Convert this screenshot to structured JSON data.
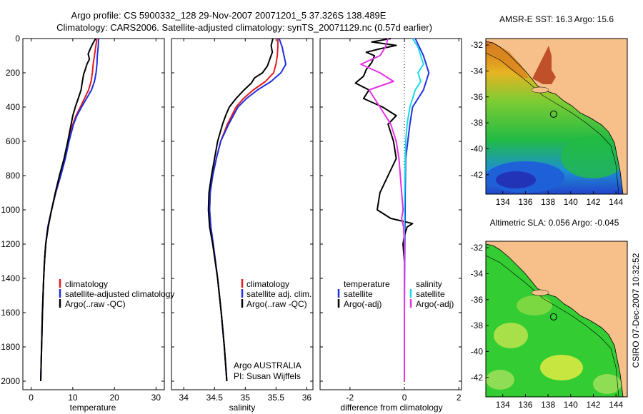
{
  "title_line1": "Argo profile: CS 5900332_128 29-Nov-2007 20071201_5 37.326S 138.489E",
  "title_line2": "Climatology: CARS2006. Satellite-adjusted climatology: synTS_20071129.nc (0.57d earlier)",
  "side_label": "CSIRO 07-Dec-2007 10:32:52",
  "colors": {
    "red": "#e41a1c",
    "blue": "#1f2fe0",
    "black": "#000000",
    "cyan": "#19d9e6",
    "magenta": "#e632e6"
  },
  "chart_data": [
    {
      "type": "line",
      "name": "temperature",
      "xlabel": "temperature",
      "ylabel": "",
      "xlim": [
        -2,
        32
      ],
      "ylim": [
        0,
        2050
      ],
      "xticks": [
        0,
        10,
        20,
        30
      ],
      "yticks": [
        0,
        200,
        400,
        600,
        800,
        1000,
        1200,
        1400,
        1600,
        1800,
        2000
      ],
      "series": [
        {
          "name": "climatology",
          "color": "red",
          "depth": [
            0,
            50,
            100,
            150,
            200,
            250,
            300,
            350,
            400,
            450,
            500,
            600,
            700,
            800,
            900,
            1000,
            1100,
            1200,
            1300,
            1400,
            1600,
            1800,
            2000
          ],
          "values": [
            15.8,
            15.5,
            15.2,
            14.9,
            14.7,
            14.4,
            13.8,
            12.8,
            11.8,
            10.8,
            10.0,
            9.0,
            8.2,
            7.1,
            5.9,
            4.9,
            4.0,
            3.5,
            3.2,
            3.0,
            2.7,
            2.5,
            2.3
          ]
        },
        {
          "name": "satellite-adjusted climatology",
          "color": "blue",
          "depth": [
            0,
            50,
            100,
            150,
            200,
            250,
            300,
            350,
            400,
            450,
            500,
            600,
            700,
            800,
            900,
            1000,
            1100,
            1200,
            1300,
            1400,
            1600,
            1800,
            2000
          ],
          "values": [
            16.2,
            16.1,
            15.9,
            15.8,
            15.6,
            15.2,
            14.5,
            13.3,
            12.1,
            11.0,
            10.2,
            9.1,
            8.2,
            7.1,
            5.9,
            4.9,
            4.0,
            3.5,
            3.2,
            3.0,
            2.7,
            2.5,
            2.3
          ]
        },
        {
          "name": "Argo(..raw -QC)",
          "color": "black",
          "depth": [
            0,
            30,
            60,
            90,
            120,
            150,
            180,
            210,
            250,
            300,
            350,
            400,
            450,
            500,
            600,
            700,
            800,
            900,
            1000,
            1100,
            1200,
            1300,
            1400,
            1600,
            1800,
            2000
          ],
          "values": [
            15.5,
            14.8,
            14.2,
            13.7,
            14.0,
            13.4,
            13.0,
            12.6,
            12.3,
            12.0,
            11.3,
            10.6,
            10.0,
            9.6,
            8.8,
            7.9,
            6.8,
            5.8,
            4.9,
            4.1,
            3.5,
            3.2,
            3.0,
            2.7,
            2.5,
            2.3
          ]
        }
      ],
      "legend": [
        "climatology",
        "satellite-adjusted climatology",
        "Argo(..raw -QC)"
      ]
    },
    {
      "type": "line",
      "name": "salinity",
      "xlabel": "salinity",
      "ylabel": "",
      "xlim": [
        33.8,
        36.1
      ],
      "ylim": [
        0,
        2050
      ],
      "xticks": [
        34,
        34.5,
        35,
        35.5,
        36
      ],
      "series": [
        {
          "name": "climatology",
          "color": "red",
          "depth": [
            0,
            50,
            100,
            150,
            200,
            250,
            300,
            350,
            400,
            500,
            600,
            700,
            800,
            900,
            1000,
            1100,
            1200,
            1400,
            1600,
            1800,
            2000
          ],
          "values": [
            35.53,
            35.53,
            35.52,
            35.5,
            35.46,
            35.33,
            35.13,
            34.97,
            34.85,
            34.71,
            34.6,
            34.53,
            34.47,
            34.43,
            34.42,
            34.44,
            34.48,
            34.55,
            34.61,
            34.66,
            34.7
          ]
        },
        {
          "name": "satellite adj. clim.",
          "color": "blue",
          "depth": [
            0,
            50,
            100,
            150,
            200,
            250,
            300,
            350,
            400,
            500,
            600,
            700,
            800,
            900,
            1000,
            1100,
            1200,
            1400,
            1600,
            1800,
            2000
          ],
          "values": [
            35.55,
            35.6,
            35.63,
            35.66,
            35.58,
            35.42,
            35.2,
            35.02,
            34.88,
            34.73,
            34.6,
            34.53,
            34.47,
            34.43,
            34.42,
            34.44,
            34.48,
            34.55,
            34.61,
            34.66,
            34.7
          ]
        },
        {
          "name": "Argo(..raw -QC)",
          "color": "black",
          "depth": [
            0,
            40,
            80,
            120,
            160,
            200,
            230,
            260,
            300,
            350,
            400,
            450,
            500,
            600,
            700,
            800,
            900,
            1000,
            1100,
            1200,
            1400,
            1600,
            1800,
            2000
          ],
          "values": [
            35.45,
            35.42,
            35.44,
            35.4,
            35.36,
            35.28,
            35.15,
            35.1,
            34.98,
            34.85,
            34.74,
            34.68,
            34.63,
            34.55,
            34.5,
            34.45,
            34.41,
            34.4,
            34.42,
            34.47,
            34.55,
            34.61,
            34.66,
            34.7
          ]
        }
      ],
      "legend": [
        "climatology",
        "satellite adj. clim.",
        "Argo(..raw -QC)"
      ],
      "annotation": [
        "Argo AUSTRALIA",
        "PI: Susan Wijffels"
      ]
    },
    {
      "type": "line",
      "name": "difference",
      "xlabel": "difference from climatology",
      "ylabel": "",
      "xlim": [
        -3.1,
        2.1
      ],
      "ylim": [
        0,
        2050
      ],
      "xticks": [
        -2,
        0,
        2
      ],
      "series": [
        {
          "name": "temperature satellite",
          "color": "blue",
          "depth": [
            0,
            100,
            200,
            300,
            400,
            500,
            700,
            900,
            1100,
            1300,
            1600,
            2000
          ],
          "values": [
            0.4,
            0.7,
            0.9,
            0.7,
            0.3,
            0.2,
            0.05,
            0.03,
            0.02,
            0.01,
            0.0,
            0.0
          ]
        },
        {
          "name": "temperature Argo(-adj)",
          "color": "black",
          "depth": [
            0,
            20,
            40,
            60,
            80,
            100,
            140,
            180,
            220,
            260,
            300,
            350,
            400,
            450,
            500,
            550,
            600,
            700,
            800,
            900,
            1000,
            1050,
            1080,
            1100,
            1150,
            1200,
            1300,
            1400,
            1600,
            1800,
            2000
          ],
          "values": [
            -0.5,
            -1.2,
            -0.3,
            -0.9,
            -1.4,
            -1.1,
            -1.2,
            -1.4,
            -1.5,
            -1.8,
            -1.3,
            -1.5,
            -0.8,
            -0.3,
            -0.6,
            -0.5,
            -0.4,
            -0.3,
            -0.6,
            -0.9,
            -1.0,
            -0.5,
            0.3,
            0.1,
            0.0,
            -0.05,
            0.0,
            0.0,
            0.0,
            0.0,
            0.0
          ]
        },
        {
          "name": "salinity satellite",
          "color": "cyan",
          "depth": [
            0,
            50,
            100,
            150,
            200,
            250,
            300,
            400,
            500,
            600,
            800,
            1000,
            1200,
            1500,
            2000
          ],
          "values": [
            0.3,
            0.5,
            0.6,
            0.7,
            0.5,
            0.6,
            0.4,
            0.2,
            0.1,
            0.05,
            0.02,
            0.0,
            0.0,
            0.0,
            0.0
          ]
        },
        {
          "name": "salinity Argo(-adj)",
          "color": "magenta",
          "depth": [
            0,
            50,
            100,
            150,
            200,
            250,
            300,
            350,
            400,
            500,
            600,
            700,
            800,
            900,
            1000,
            1050,
            1100,
            1200,
            1400,
            1600,
            1800,
            2000
          ],
          "values": [
            -0.6,
            -0.7,
            -0.9,
            -1.6,
            -0.9,
            -0.4,
            -1.3,
            -1.1,
            -0.9,
            -0.5,
            -0.3,
            -0.2,
            -0.15,
            -0.1,
            -0.05,
            -0.1,
            -0.03,
            0.0,
            0.0,
            0.0,
            0.0,
            0.0
          ]
        }
      ],
      "legend_temp": {
        "title": "temperature",
        "items": [
          "satellite",
          "Argo(-adj)"
        ]
      },
      "legend_sal": {
        "title": "salinity",
        "items": [
          "satellite",
          "Argo(-adj)"
        ]
      }
    }
  ],
  "maps": [
    {
      "title": "AMSR-E SST: 16.3 Argo: 15.6",
      "xticks": [
        134,
        136,
        138,
        140,
        142,
        144
      ],
      "yticks": [
        -32,
        -34,
        -36,
        -38,
        -40,
        -42
      ],
      "lon_range": [
        132.5,
        145
      ],
      "lat_range": [
        -31.5,
        -43.5
      ],
      "profile_lon": 138.49,
      "profile_lat": -37.33
    },
    {
      "title": "Altimetric SLA: 0.056 Argo: -0.045",
      "xticks": [
        134,
        136,
        138,
        140,
        142,
        144
      ],
      "yticks": [
        -32,
        -34,
        -36,
        -38,
        -40,
        -42
      ],
      "lon_range": [
        132.5,
        145
      ],
      "lat_range": [
        -31.5,
        -43.5
      ],
      "profile_lon": 138.49,
      "profile_lat": -37.33
    }
  ]
}
